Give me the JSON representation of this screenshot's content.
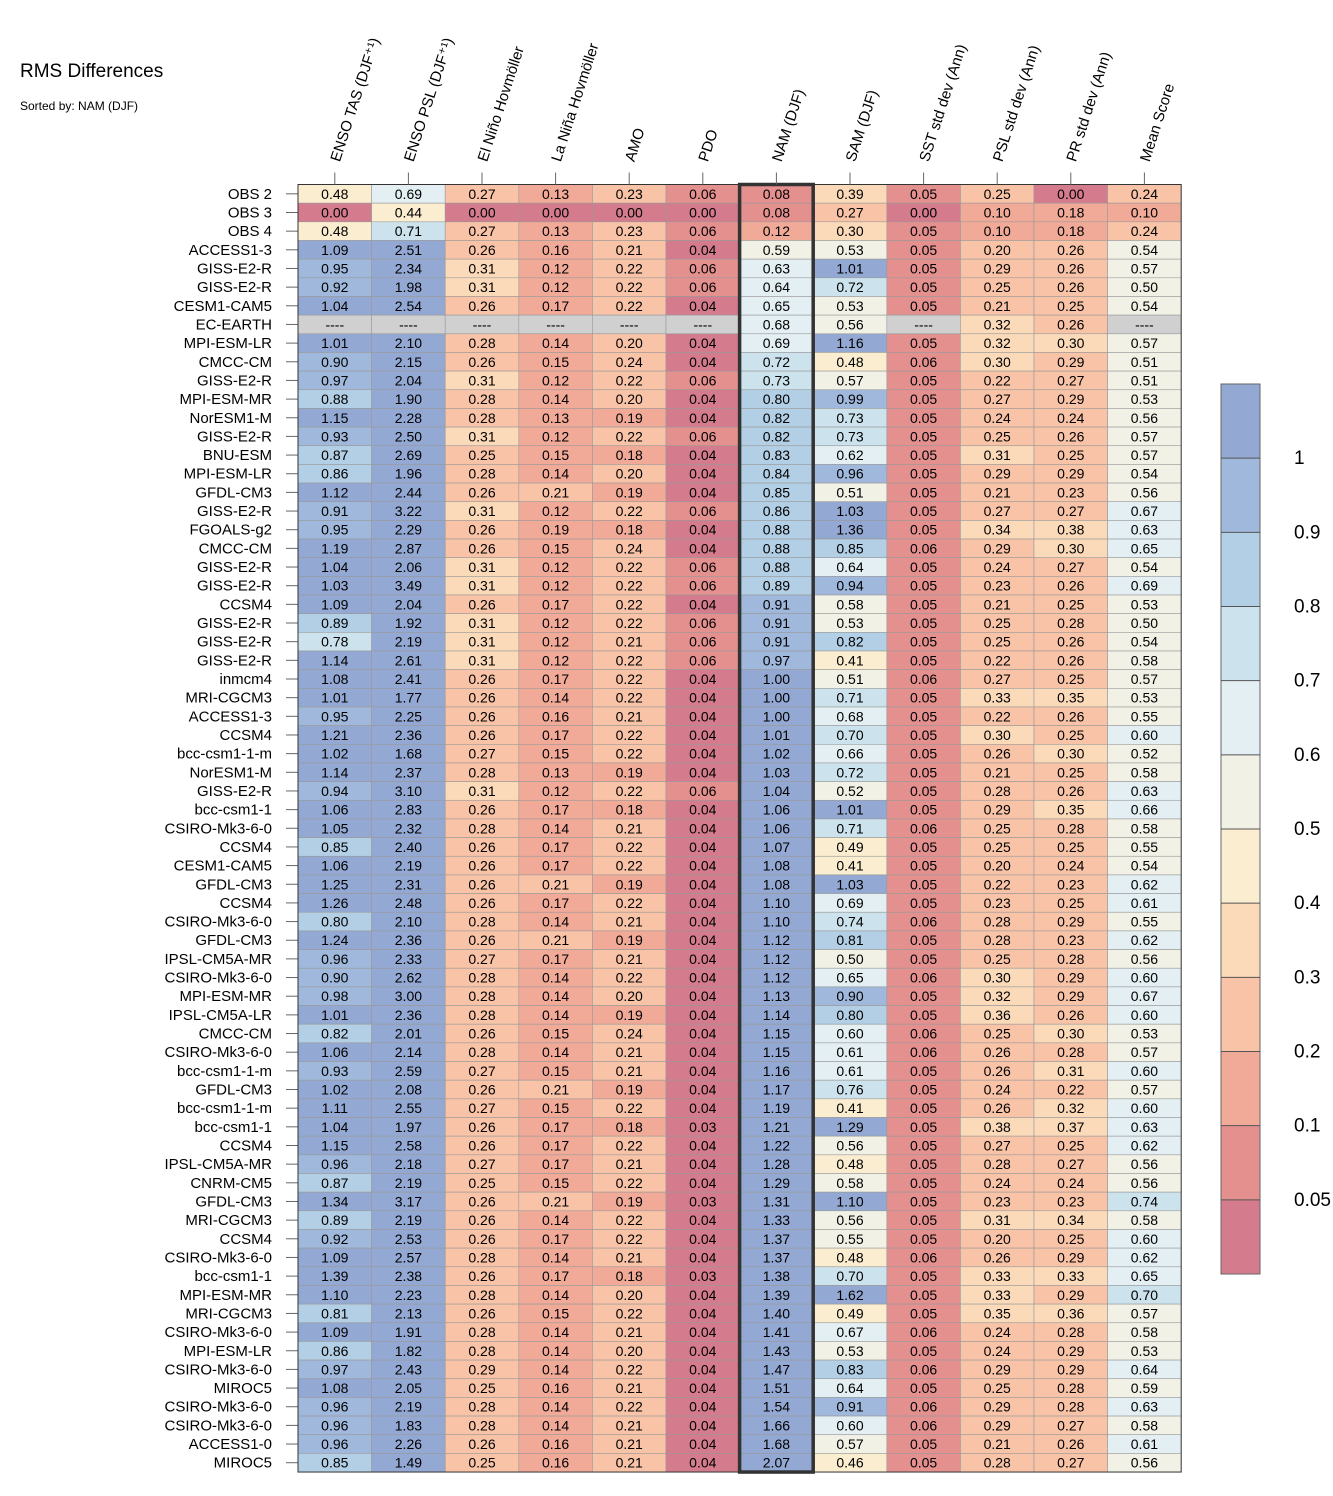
{
  "header": {
    "title": "RMS Differences",
    "subtitle": "Sorted by: NAM (DJF)"
  },
  "chart_data": {
    "type": "heatmap",
    "title": "RMS Differences",
    "subtitle": "Sorted by: NAM (DJF)",
    "highlighted_column": "NAM (DJF)",
    "missing_label": "----",
    "columns": [
      "ENSO TAS (DJF⁺¹)",
      "ENSO PSL (DJF⁺¹)",
      "El Niño Hovmöller",
      "La Niña Hovmöller",
      "AMO",
      "PDO",
      "NAM (DJF)",
      "SAM (DJF)",
      "SST std dev (Ann)",
      "PSL std dev (Ann)",
      "PR std dev (Ann)",
      "Mean Score"
    ],
    "rows": [
      {
        "name": "OBS 2",
        "values": [
          0.48,
          0.69,
          0.27,
          0.13,
          0.23,
          0.06,
          0.08,
          0.39,
          0.05,
          0.25,
          0.0,
          0.24
        ]
      },
      {
        "name": "OBS 3",
        "values": [
          0.0,
          0.44,
          0.0,
          0.0,
          0.0,
          0.0,
          0.08,
          0.27,
          0.0,
          0.1,
          0.18,
          0.1
        ]
      },
      {
        "name": "OBS 4",
        "values": [
          0.48,
          0.71,
          0.27,
          0.13,
          0.23,
          0.06,
          0.12,
          0.3,
          0.05,
          0.1,
          0.18,
          0.24
        ]
      },
      {
        "name": "ACCESS1-3",
        "values": [
          1.09,
          2.51,
          0.26,
          0.16,
          0.21,
          0.04,
          0.59,
          0.53,
          0.05,
          0.2,
          0.26,
          0.54
        ]
      },
      {
        "name": "GISS-E2-R",
        "values": [
          0.95,
          2.34,
          0.31,
          0.12,
          0.22,
          0.06,
          0.63,
          1.01,
          0.05,
          0.29,
          0.26,
          0.57
        ]
      },
      {
        "name": "GISS-E2-R",
        "values": [
          0.92,
          1.98,
          0.31,
          0.12,
          0.22,
          0.06,
          0.64,
          0.72,
          0.05,
          0.25,
          0.26,
          0.5
        ]
      },
      {
        "name": "CESM1-CAM5",
        "values": [
          1.04,
          2.54,
          0.26,
          0.17,
          0.22,
          0.04,
          0.65,
          0.53,
          0.05,
          0.21,
          0.25,
          0.54
        ]
      },
      {
        "name": "EC-EARTH",
        "values": [
          null,
          null,
          null,
          null,
          null,
          null,
          0.68,
          0.56,
          null,
          0.32,
          0.26,
          null
        ]
      },
      {
        "name": "MPI-ESM-LR",
        "values": [
          1.01,
          2.1,
          0.28,
          0.14,
          0.2,
          0.04,
          0.69,
          1.16,
          0.05,
          0.32,
          0.3,
          0.57
        ]
      },
      {
        "name": "CMCC-CM",
        "values": [
          0.9,
          2.15,
          0.26,
          0.15,
          0.24,
          0.04,
          0.72,
          0.48,
          0.06,
          0.3,
          0.29,
          0.51
        ]
      },
      {
        "name": "GISS-E2-R",
        "values": [
          0.97,
          2.04,
          0.31,
          0.12,
          0.22,
          0.06,
          0.73,
          0.57,
          0.05,
          0.22,
          0.27,
          0.51
        ]
      },
      {
        "name": "MPI-ESM-MR",
        "values": [
          0.88,
          1.9,
          0.28,
          0.14,
          0.2,
          0.04,
          0.8,
          0.99,
          0.05,
          0.27,
          0.29,
          0.53
        ]
      },
      {
        "name": "NorESM1-M",
        "values": [
          1.15,
          2.28,
          0.28,
          0.13,
          0.19,
          0.04,
          0.82,
          0.73,
          0.05,
          0.24,
          0.24,
          0.56
        ]
      },
      {
        "name": "GISS-E2-R",
        "values": [
          0.93,
          2.5,
          0.31,
          0.12,
          0.22,
          0.06,
          0.82,
          0.73,
          0.05,
          0.25,
          0.26,
          0.57
        ]
      },
      {
        "name": "BNU-ESM",
        "values": [
          0.87,
          2.69,
          0.25,
          0.15,
          0.18,
          0.04,
          0.83,
          0.62,
          0.05,
          0.31,
          0.25,
          0.57
        ]
      },
      {
        "name": "MPI-ESM-LR",
        "values": [
          0.86,
          1.96,
          0.28,
          0.14,
          0.2,
          0.04,
          0.84,
          0.96,
          0.05,
          0.29,
          0.29,
          0.54
        ]
      },
      {
        "name": "GFDL-CM3",
        "values": [
          1.12,
          2.44,
          0.26,
          0.21,
          0.19,
          0.04,
          0.85,
          0.51,
          0.05,
          0.21,
          0.23,
          0.56
        ]
      },
      {
        "name": "GISS-E2-R",
        "values": [
          0.91,
          3.22,
          0.31,
          0.12,
          0.22,
          0.06,
          0.86,
          1.03,
          0.05,
          0.27,
          0.27,
          0.67
        ]
      },
      {
        "name": "FGOALS-g2",
        "values": [
          0.95,
          2.29,
          0.26,
          0.19,
          0.18,
          0.04,
          0.88,
          1.36,
          0.05,
          0.34,
          0.38,
          0.63
        ]
      },
      {
        "name": "CMCC-CM",
        "values": [
          1.19,
          2.87,
          0.26,
          0.15,
          0.24,
          0.04,
          0.88,
          0.85,
          0.06,
          0.29,
          0.3,
          0.65
        ]
      },
      {
        "name": "GISS-E2-R",
        "values": [
          1.04,
          2.06,
          0.31,
          0.12,
          0.22,
          0.06,
          0.88,
          0.64,
          0.05,
          0.24,
          0.27,
          0.54
        ]
      },
      {
        "name": "GISS-E2-R",
        "values": [
          1.03,
          3.49,
          0.31,
          0.12,
          0.22,
          0.06,
          0.89,
          0.94,
          0.05,
          0.23,
          0.26,
          0.69
        ]
      },
      {
        "name": "CCSM4",
        "values": [
          1.09,
          2.04,
          0.26,
          0.17,
          0.22,
          0.04,
          0.91,
          0.58,
          0.05,
          0.21,
          0.25,
          0.53
        ]
      },
      {
        "name": "GISS-E2-R",
        "values": [
          0.89,
          1.92,
          0.31,
          0.12,
          0.22,
          0.06,
          0.91,
          0.53,
          0.05,
          0.25,
          0.28,
          0.5
        ]
      },
      {
        "name": "GISS-E2-R",
        "values": [
          0.78,
          2.19,
          0.31,
          0.12,
          0.21,
          0.06,
          0.91,
          0.82,
          0.05,
          0.25,
          0.26,
          0.54
        ]
      },
      {
        "name": "GISS-E2-R",
        "values": [
          1.14,
          2.61,
          0.31,
          0.12,
          0.22,
          0.06,
          0.97,
          0.41,
          0.05,
          0.22,
          0.26,
          0.58
        ]
      },
      {
        "name": "inmcm4",
        "values": [
          1.08,
          2.41,
          0.26,
          0.17,
          0.22,
          0.04,
          1.0,
          0.51,
          0.06,
          0.27,
          0.25,
          0.57
        ]
      },
      {
        "name": "MRI-CGCM3",
        "values": [
          1.01,
          1.77,
          0.26,
          0.14,
          0.22,
          0.04,
          1.0,
          0.71,
          0.05,
          0.33,
          0.35,
          0.53
        ]
      },
      {
        "name": "ACCESS1-3",
        "values": [
          0.95,
          2.25,
          0.26,
          0.16,
          0.21,
          0.04,
          1.0,
          0.68,
          0.05,
          0.22,
          0.26,
          0.55
        ]
      },
      {
        "name": "CCSM4",
        "values": [
          1.21,
          2.36,
          0.26,
          0.17,
          0.22,
          0.04,
          1.01,
          0.7,
          0.05,
          0.3,
          0.25,
          0.6
        ]
      },
      {
        "name": "bcc-csm1-1-m",
        "values": [
          1.02,
          1.68,
          0.27,
          0.15,
          0.22,
          0.04,
          1.02,
          0.66,
          0.05,
          0.26,
          0.3,
          0.52
        ]
      },
      {
        "name": "NorESM1-M",
        "values": [
          1.14,
          2.37,
          0.28,
          0.13,
          0.19,
          0.04,
          1.03,
          0.72,
          0.05,
          0.21,
          0.25,
          0.58
        ]
      },
      {
        "name": "GISS-E2-R",
        "values": [
          0.94,
          3.1,
          0.31,
          0.12,
          0.22,
          0.06,
          1.04,
          0.52,
          0.05,
          0.28,
          0.26,
          0.63
        ]
      },
      {
        "name": "bcc-csm1-1",
        "values": [
          1.06,
          2.83,
          0.26,
          0.17,
          0.18,
          0.04,
          1.06,
          1.01,
          0.05,
          0.29,
          0.35,
          0.66
        ]
      },
      {
        "name": "CSIRO-Mk3-6-0",
        "values": [
          1.05,
          2.32,
          0.28,
          0.14,
          0.21,
          0.04,
          1.06,
          0.71,
          0.06,
          0.25,
          0.28,
          0.58
        ]
      },
      {
        "name": "CCSM4",
        "values": [
          0.85,
          2.4,
          0.26,
          0.17,
          0.22,
          0.04,
          1.07,
          0.49,
          0.05,
          0.25,
          0.25,
          0.55
        ]
      },
      {
        "name": "CESM1-CAM5",
        "values": [
          1.06,
          2.19,
          0.26,
          0.17,
          0.22,
          0.04,
          1.08,
          0.41,
          0.05,
          0.2,
          0.24,
          0.54
        ]
      },
      {
        "name": "GFDL-CM3",
        "values": [
          1.25,
          2.31,
          0.26,
          0.21,
          0.19,
          0.04,
          1.08,
          1.03,
          0.05,
          0.22,
          0.23,
          0.62
        ]
      },
      {
        "name": "CCSM4",
        "values": [
          1.26,
          2.48,
          0.26,
          0.17,
          0.22,
          0.04,
          1.1,
          0.69,
          0.05,
          0.23,
          0.25,
          0.61
        ]
      },
      {
        "name": "CSIRO-Mk3-6-0",
        "values": [
          0.8,
          2.1,
          0.28,
          0.14,
          0.21,
          0.04,
          1.1,
          0.74,
          0.06,
          0.28,
          0.29,
          0.55
        ]
      },
      {
        "name": "GFDL-CM3",
        "values": [
          1.24,
          2.36,
          0.26,
          0.21,
          0.19,
          0.04,
          1.12,
          0.81,
          0.05,
          0.28,
          0.23,
          0.62
        ]
      },
      {
        "name": "IPSL-CM5A-MR",
        "values": [
          0.96,
          2.33,
          0.27,
          0.17,
          0.21,
          0.04,
          1.12,
          0.5,
          0.05,
          0.25,
          0.28,
          0.56
        ]
      },
      {
        "name": "CSIRO-Mk3-6-0",
        "values": [
          0.9,
          2.62,
          0.28,
          0.14,
          0.22,
          0.04,
          1.12,
          0.65,
          0.06,
          0.3,
          0.29,
          0.6
        ]
      },
      {
        "name": "MPI-ESM-MR",
        "values": [
          0.98,
          3.0,
          0.28,
          0.14,
          0.2,
          0.04,
          1.13,
          0.9,
          0.05,
          0.32,
          0.29,
          0.67
        ]
      },
      {
        "name": "IPSL-CM5A-LR",
        "values": [
          1.01,
          2.36,
          0.28,
          0.14,
          0.19,
          0.04,
          1.14,
          0.8,
          0.05,
          0.36,
          0.26,
          0.6
        ]
      },
      {
        "name": "CMCC-CM",
        "values": [
          0.82,
          2.01,
          0.26,
          0.15,
          0.24,
          0.04,
          1.15,
          0.6,
          0.06,
          0.25,
          0.3,
          0.53
        ]
      },
      {
        "name": "CSIRO-Mk3-6-0",
        "values": [
          1.06,
          2.14,
          0.28,
          0.14,
          0.21,
          0.04,
          1.15,
          0.61,
          0.06,
          0.26,
          0.28,
          0.57
        ]
      },
      {
        "name": "bcc-csm1-1-m",
        "values": [
          0.93,
          2.59,
          0.27,
          0.15,
          0.21,
          0.04,
          1.16,
          0.61,
          0.05,
          0.26,
          0.31,
          0.6
        ]
      },
      {
        "name": "GFDL-CM3",
        "values": [
          1.02,
          2.08,
          0.26,
          0.21,
          0.19,
          0.04,
          1.17,
          0.76,
          0.05,
          0.24,
          0.22,
          0.57
        ]
      },
      {
        "name": "bcc-csm1-1-m",
        "values": [
          1.11,
          2.55,
          0.27,
          0.15,
          0.22,
          0.04,
          1.19,
          0.41,
          0.05,
          0.26,
          0.32,
          0.6
        ]
      },
      {
        "name": "bcc-csm1-1",
        "values": [
          1.04,
          1.97,
          0.26,
          0.17,
          0.18,
          0.03,
          1.21,
          1.29,
          0.05,
          0.38,
          0.37,
          0.63
        ]
      },
      {
        "name": "CCSM4",
        "values": [
          1.15,
          2.58,
          0.26,
          0.17,
          0.22,
          0.04,
          1.22,
          0.56,
          0.05,
          0.27,
          0.25,
          0.62
        ]
      },
      {
        "name": "IPSL-CM5A-MR",
        "values": [
          0.96,
          2.18,
          0.27,
          0.17,
          0.21,
          0.04,
          1.28,
          0.48,
          0.05,
          0.28,
          0.27,
          0.56
        ]
      },
      {
        "name": "CNRM-CM5",
        "values": [
          0.87,
          2.19,
          0.25,
          0.15,
          0.22,
          0.04,
          1.29,
          0.58,
          0.05,
          0.24,
          0.24,
          0.56
        ]
      },
      {
        "name": "GFDL-CM3",
        "values": [
          1.34,
          3.17,
          0.26,
          0.21,
          0.19,
          0.03,
          1.31,
          1.1,
          0.05,
          0.23,
          0.23,
          0.74
        ]
      },
      {
        "name": "MRI-CGCM3",
        "values": [
          0.89,
          2.19,
          0.26,
          0.14,
          0.22,
          0.04,
          1.33,
          0.56,
          0.05,
          0.31,
          0.34,
          0.58
        ]
      },
      {
        "name": "CCSM4",
        "values": [
          0.92,
          2.53,
          0.26,
          0.17,
          0.22,
          0.04,
          1.37,
          0.55,
          0.05,
          0.2,
          0.25,
          0.6
        ]
      },
      {
        "name": "CSIRO-Mk3-6-0",
        "values": [
          1.09,
          2.57,
          0.28,
          0.14,
          0.21,
          0.04,
          1.37,
          0.48,
          0.06,
          0.26,
          0.29,
          0.62
        ]
      },
      {
        "name": "bcc-csm1-1",
        "values": [
          1.39,
          2.38,
          0.26,
          0.17,
          0.18,
          0.03,
          1.38,
          0.7,
          0.05,
          0.33,
          0.33,
          0.65
        ]
      },
      {
        "name": "MPI-ESM-MR",
        "values": [
          1.1,
          2.23,
          0.28,
          0.14,
          0.2,
          0.04,
          1.39,
          1.62,
          0.05,
          0.33,
          0.29,
          0.7
        ]
      },
      {
        "name": "MRI-CGCM3",
        "values": [
          0.81,
          2.13,
          0.26,
          0.15,
          0.22,
          0.04,
          1.4,
          0.49,
          0.05,
          0.35,
          0.36,
          0.57
        ]
      },
      {
        "name": "CSIRO-Mk3-6-0",
        "values": [
          1.09,
          1.91,
          0.28,
          0.14,
          0.21,
          0.04,
          1.41,
          0.67,
          0.06,
          0.24,
          0.28,
          0.58
        ]
      },
      {
        "name": "MPI-ESM-LR",
        "values": [
          0.86,
          1.82,
          0.28,
          0.14,
          0.2,
          0.04,
          1.43,
          0.53,
          0.05,
          0.24,
          0.29,
          0.53
        ]
      },
      {
        "name": "CSIRO-Mk3-6-0",
        "values": [
          0.97,
          2.43,
          0.29,
          0.14,
          0.22,
          0.04,
          1.47,
          0.83,
          0.06,
          0.29,
          0.29,
          0.64
        ]
      },
      {
        "name": "MIROC5",
        "values": [
          1.08,
          2.05,
          0.25,
          0.16,
          0.21,
          0.04,
          1.51,
          0.64,
          0.05,
          0.25,
          0.28,
          0.59
        ]
      },
      {
        "name": "CSIRO-Mk3-6-0",
        "values": [
          0.96,
          2.19,
          0.28,
          0.14,
          0.22,
          0.04,
          1.54,
          0.91,
          0.06,
          0.29,
          0.28,
          0.63
        ]
      },
      {
        "name": "CSIRO-Mk3-6-0",
        "values": [
          0.96,
          1.83,
          0.28,
          0.14,
          0.21,
          0.04,
          1.66,
          0.6,
          0.06,
          0.29,
          0.27,
          0.58
        ]
      },
      {
        "name": "ACCESS1-0",
        "values": [
          0.96,
          2.26,
          0.26,
          0.16,
          0.21,
          0.04,
          1.68,
          0.57,
          0.05,
          0.21,
          0.26,
          0.61
        ]
      },
      {
        "name": "MIROC5",
        "values": [
          0.85,
          1.49,
          0.25,
          0.16,
          0.21,
          0.04,
          2.07,
          0.46,
          0.05,
          0.28,
          0.27,
          0.56
        ]
      }
    ],
    "colorbar": {
      "boundaries": [
        0.05,
        0.1,
        0.2,
        0.3,
        0.4,
        0.5,
        0.6,
        0.7,
        0.8,
        0.9,
        1
      ],
      "tick_labels": [
        "0.05",
        "0.1",
        "0.2",
        "0.3",
        "0.4",
        "0.5",
        "0.6",
        "0.7",
        "0.8",
        "0.9",
        "1"
      ],
      "colors_low_to_high": [
        "#d47b8d",
        "#e3908f",
        "#f1aa98",
        "#f8c3a7",
        "#fbdab9",
        "#fbedcf",
        "#f2f1e6",
        "#e3eff3",
        "#cce3ee",
        "#b3cfe5",
        "#9fb8db",
        "#93a9d3"
      ],
      "missing_color": "#d0d0d0"
    }
  }
}
